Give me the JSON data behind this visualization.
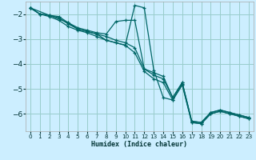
{
  "xlabel": "Humidex (Indice chaleur)",
  "bg_color": "#cceeff",
  "grid_color": "#99cccc",
  "line_color": "#006666",
  "xlim": [
    -0.5,
    23.5
  ],
  "ylim": [
    -6.7,
    -1.5
  ],
  "yticks": [
    -2,
    -3,
    -4,
    -5,
    -6
  ],
  "xticks": [
    0,
    1,
    2,
    3,
    4,
    5,
    6,
    7,
    8,
    9,
    10,
    11,
    12,
    13,
    14,
    15,
    16,
    17,
    18,
    19,
    20,
    21,
    22,
    23
  ],
  "series": [
    {
      "x": [
        0,
        1,
        2,
        3,
        4,
        5,
        6,
        7,
        8,
        9,
        10,
        11,
        12,
        13,
        14,
        15,
        16,
        17,
        18,
        19,
        20,
        21,
        22,
        23
      ],
      "y": [
        -1.75,
        -2.0,
        -2.05,
        -2.1,
        -2.35,
        -2.55,
        -2.65,
        -2.75,
        -2.8,
        -2.3,
        -2.25,
        -2.25,
        -4.2,
        -4.35,
        -4.5,
        -5.35,
        -4.75,
        -6.3,
        -6.35,
        -5.95,
        -5.85,
        -5.95,
        -6.05,
        -6.15
      ]
    },
    {
      "x": [
        0,
        1,
        2,
        3,
        4,
        5,
        6,
        7,
        8,
        9,
        10,
        11,
        12,
        13,
        14,
        15,
        16,
        17,
        18,
        19,
        20,
        21,
        22,
        23
      ],
      "y": [
        -1.75,
        -2.0,
        -2.05,
        -2.15,
        -2.4,
        -2.6,
        -2.7,
        -2.8,
        -2.9,
        -3.05,
        -3.15,
        -3.35,
        -4.2,
        -4.45,
        -4.6,
        -5.35,
        -4.75,
        -6.3,
        -6.35,
        -5.95,
        -5.85,
        -5.95,
        -6.05,
        -6.15
      ]
    },
    {
      "x": [
        0,
        1,
        2,
        3,
        4,
        5,
        6,
        7,
        8,
        9,
        10,
        11,
        12,
        13,
        14,
        15,
        16,
        17,
        18,
        19,
        20,
        21,
        22,
        23
      ],
      "y": [
        -1.75,
        -2.0,
        -2.1,
        -2.25,
        -2.5,
        -2.65,
        -2.75,
        -2.9,
        -3.05,
        -3.15,
        -3.25,
        -3.55,
        -4.3,
        -4.6,
        -4.75,
        -5.45,
        -4.85,
        -6.35,
        -6.4,
        -6.0,
        -5.9,
        -6.0,
        -6.1,
        -6.2
      ]
    },
    {
      "x": [
        0,
        4,
        5,
        6,
        7,
        8,
        9,
        10,
        11,
        12,
        13,
        14,
        15,
        16,
        17,
        18,
        19,
        20,
        21,
        22,
        23
      ],
      "y": [
        -1.75,
        -2.35,
        -2.6,
        -2.7,
        -2.8,
        -3.05,
        -3.15,
        -3.25,
        -1.65,
        -1.75,
        -4.25,
        -5.35,
        -5.45,
        -4.8,
        -6.35,
        -6.4,
        -6.0,
        -5.9,
        -6.0,
        -6.1,
        -6.2
      ]
    }
  ]
}
